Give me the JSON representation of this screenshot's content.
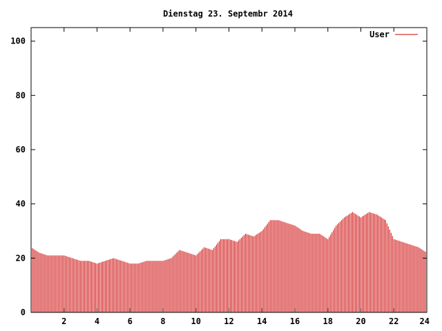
{
  "chart_data": {
    "type": "bar",
    "title": "Dienstag 23. Septembr 2014",
    "xlabel": "",
    "ylabel": "",
    "xlim": [
      0,
      24
    ],
    "ylim": [
      0,
      105
    ],
    "x_ticks": [
      "2",
      "4",
      "6",
      "8",
      "10",
      "12",
      "14",
      "16",
      "18",
      "20",
      "22",
      "24"
    ],
    "y_ticks": [
      "0",
      "20",
      "40",
      "60",
      "80",
      "100"
    ],
    "legend_position": "top-right",
    "grid": false,
    "color": "#cc0000",
    "series": [
      {
        "name": "User",
        "x": [
          0,
          0.5,
          1,
          1.5,
          2,
          2.5,
          3,
          3.5,
          4,
          4.5,
          5,
          5.5,
          6,
          6.5,
          7,
          7.5,
          8,
          8.5,
          9,
          9.5,
          10,
          10.5,
          11,
          11.5,
          12,
          12.5,
          13,
          13.5,
          14,
          14.5,
          15,
          15.5,
          16,
          16.5,
          17,
          17.5,
          18,
          18.5,
          19,
          19.5,
          20,
          20.5,
          21,
          21.5,
          22,
          22.5,
          23,
          23.5,
          24
        ],
        "values": [
          24,
          22,
          21,
          21,
          21,
          20,
          19,
          19,
          18,
          19,
          20,
          19,
          18,
          18,
          19,
          19,
          19,
          20,
          23,
          22,
          21,
          24,
          23,
          27,
          27,
          26,
          29,
          28,
          30,
          34,
          34,
          33,
          32,
          30,
          29,
          29,
          27,
          32,
          35,
          37,
          35,
          37,
          36,
          34,
          27,
          26,
          25,
          24,
          22
        ]
      }
    ]
  }
}
